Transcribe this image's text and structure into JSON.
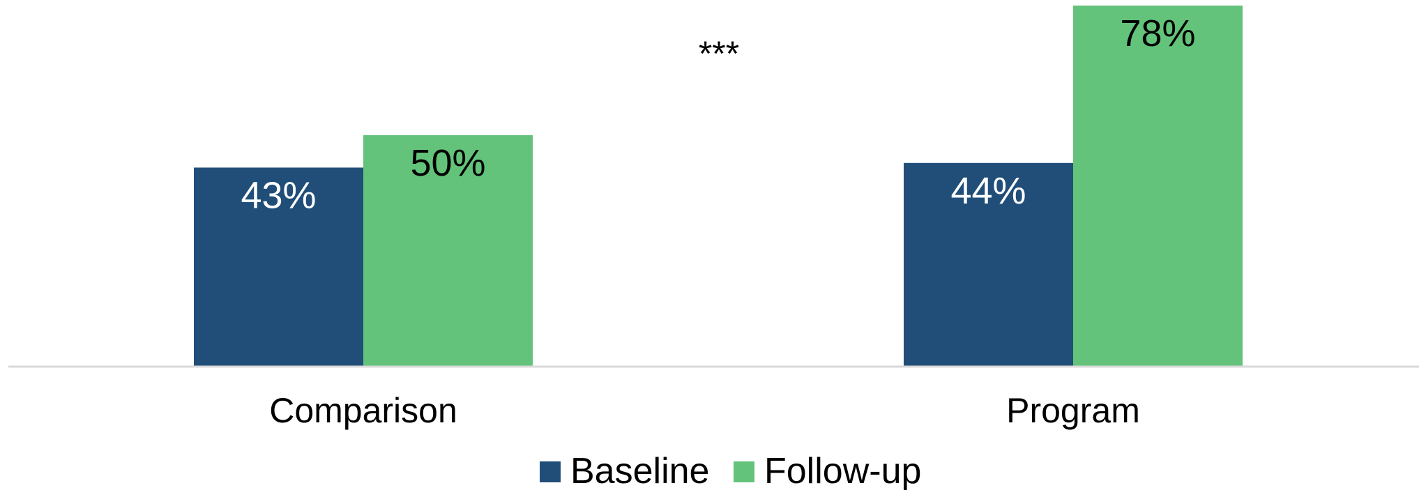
{
  "chart_data": {
    "type": "bar",
    "categories": [
      "Comparison",
      "Program"
    ],
    "series": [
      {
        "name": "Baseline",
        "values": [
          43,
          44
        ],
        "labels": [
          "43%",
          "44%"
        ],
        "color": "#204e78",
        "label_color": "#ffffff"
      },
      {
        "name": "Follow-up",
        "values": [
          50,
          78
        ],
        "labels": [
          "50%",
          "78%"
        ],
        "color": "#63c37a",
        "label_color": "#000000"
      }
    ],
    "annotations": [
      {
        "text": "***",
        "category": "Program"
      }
    ],
    "ylim": [
      0,
      78
    ],
    "grid": false,
    "legend": "bottom-center",
    "baseline_color": "#d9d9d9"
  }
}
